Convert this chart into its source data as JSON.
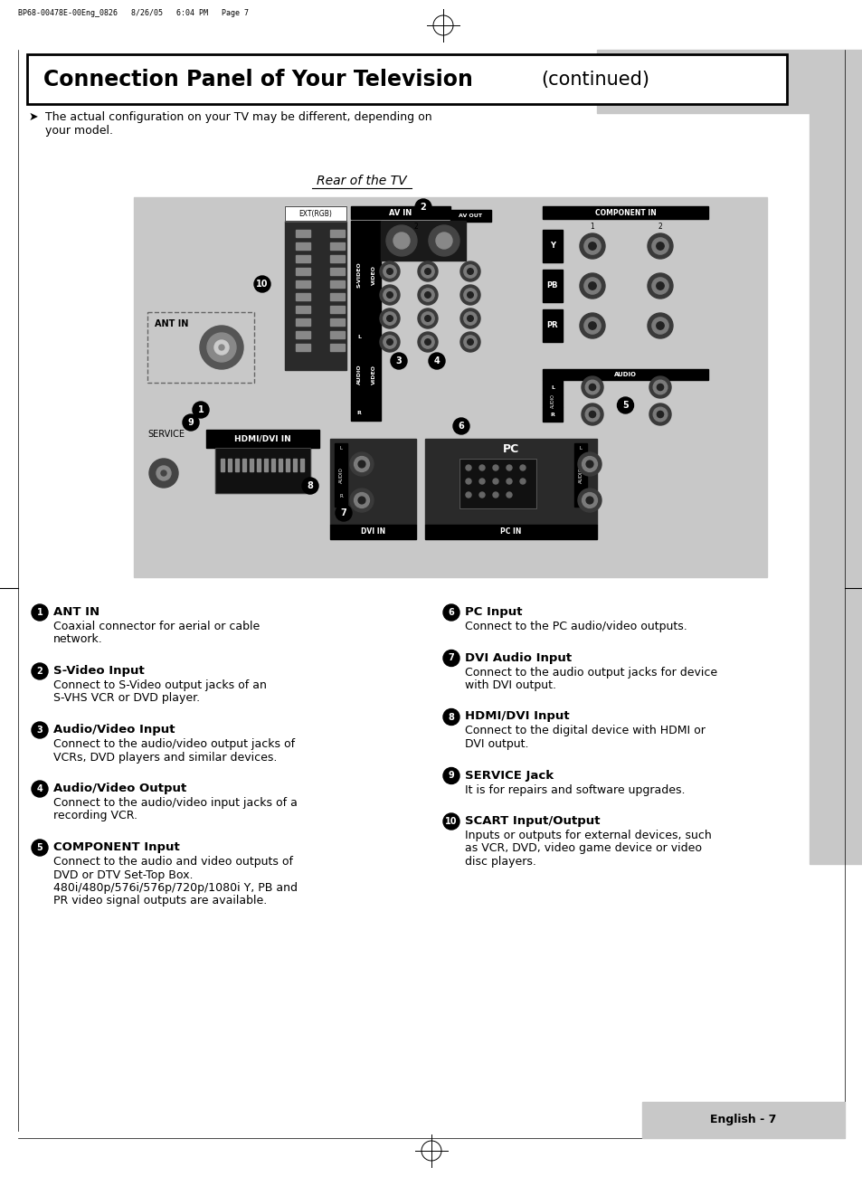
{
  "page_bg": "#ffffff",
  "title_bold": "Connection Panel of Your Television",
  "title_normal": "(continued)",
  "header_file": "BP68-00478E-00Eng_0826   8/26/05   6:04 PM   Page 7",
  "note_text_line1": "The actual configuration on your TV may be different, depending on",
  "note_text_line2": "your model.",
  "diagram_title": "Rear of the TV",
  "diagram_bg": "#c8c8c8",
  "panel_dark": "#555555",
  "panel_darker": "#333333",
  "footer_text": "English - 7",
  "sidebar_color": "#c8c8c8",
  "items_left": [
    {
      "num": "1",
      "title": "ANT IN",
      "body_lines": [
        "Coaxial connector for aerial or cable",
        "network."
      ]
    },
    {
      "num": "2",
      "title": "S-Video Input",
      "body_lines": [
        "Connect to S-Video output jacks of an",
        "S-VHS VCR or DVD player."
      ]
    },
    {
      "num": "3",
      "title": "Audio/Video Input",
      "body_lines": [
        "Connect to the audio/video output jacks of",
        "VCRs, DVD players and similar devices."
      ]
    },
    {
      "num": "4",
      "title": "Audio/Video Output",
      "body_lines": [
        "Connect to the audio/video input jacks of a",
        "recording VCR."
      ]
    },
    {
      "num": "5",
      "title": "COMPONENT Input",
      "body_lines": [
        "Connect to the audio and video outputs of",
        "DVD or DTV Set-Top Box.",
        "480i/480p/576i/576p/720p/1080i Y, PB and",
        "PR video signal outputs are available."
      ]
    }
  ],
  "items_right": [
    {
      "num": "6",
      "title": "PC Input",
      "body_lines": [
        "Connect to the PC audio/video outputs."
      ]
    },
    {
      "num": "7",
      "title": "DVI Audio Input",
      "body_lines": [
        "Connect to the audio output jacks for device",
        "with DVI output."
      ]
    },
    {
      "num": "8",
      "title": "HDMI/DVI Input",
      "body_lines": [
        "Connect to the digital device with HDMI or",
        "DVI output."
      ]
    },
    {
      "num": "9",
      "title": "SERVICE Jack",
      "body_lines": [
        "It is for repairs and software upgrades."
      ]
    },
    {
      "num": "10",
      "title": "SCART Input/Output",
      "body_lines": [
        "Inputs or outputs for external devices, such",
        "as VCR, DVD, video game device or video",
        "disc players."
      ]
    }
  ]
}
